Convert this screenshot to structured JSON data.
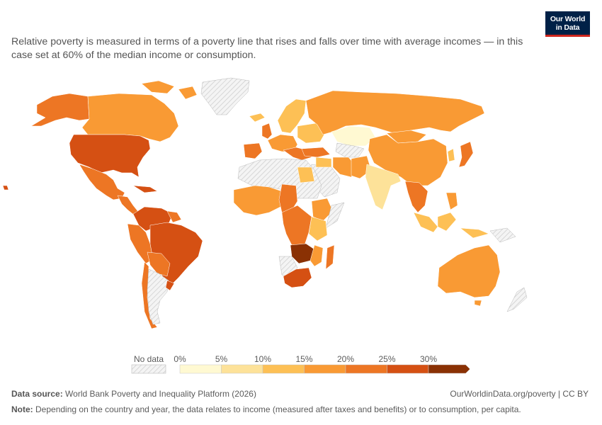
{
  "subtitle": "Relative poverty is measured in terms of a poverty line that rises and falls over time with average incomes — in this case set at 60% of the median income or consumption.",
  "logo": {
    "line1": "Our World",
    "line2": "in Data",
    "bg_color": "#002147",
    "accent_color": "#ce261e"
  },
  "legend": {
    "no_data_label": "No data",
    "ticks": [
      "0%",
      "5%",
      "10%",
      "15%",
      "20%",
      "25%",
      "30%"
    ],
    "colors": [
      "#fff9d2",
      "#fde299",
      "#fdc055",
      "#f99a34",
      "#ed7624",
      "#d55013",
      "#8a3104"
    ]
  },
  "chart_data": {
    "type": "choropleth",
    "scale_unit": "%",
    "bins": [
      {
        "min": 0,
        "max": 5,
        "color": "#fff9d2"
      },
      {
        "min": 5,
        "max": 10,
        "color": "#fde299"
      },
      {
        "min": 10,
        "max": 15,
        "color": "#fdc055"
      },
      {
        "min": 15,
        "max": 20,
        "color": "#f99a34"
      },
      {
        "min": 20,
        "max": 25,
        "color": "#ed7624"
      },
      {
        "min": 25,
        "max": 30,
        "color": "#d55013"
      },
      {
        "min": 30,
        "max": null,
        "color": "#8a3104"
      }
    ]
  },
  "footer": {
    "source_label": "Data source:",
    "source_text": "World Bank Poverty and Inequality Platform (2026)",
    "note_label": "Note:",
    "note_text": "Depending on the country and year, the data relates to income (measured after taxes and benefits) or to consumption, per capita.",
    "credit": "OurWorldinData.org/poverty | CC BY"
  }
}
